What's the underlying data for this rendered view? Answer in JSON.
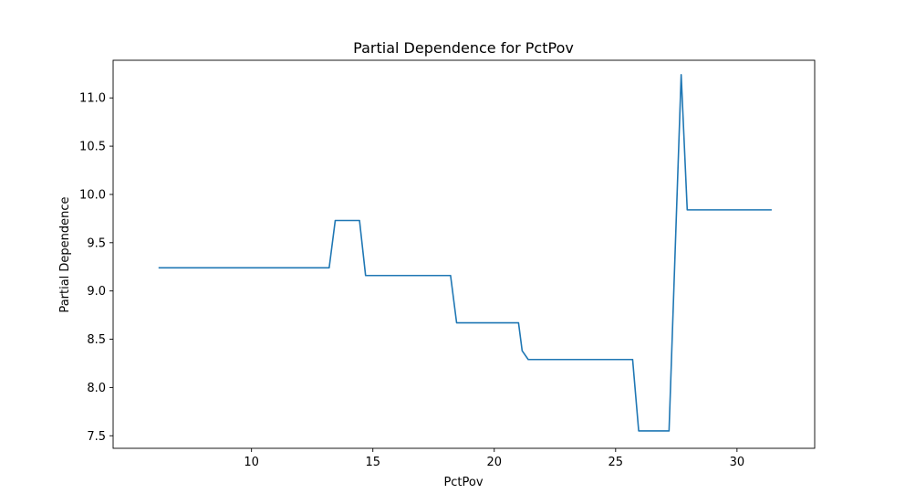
{
  "chart_data": {
    "type": "line",
    "title": "Partial Dependence for PctPov",
    "xlabel": "PctPov",
    "ylabel": "Partial Dependence",
    "xlim": [
      4.3,
      33.2
    ],
    "ylim": [
      7.37,
      11.39
    ],
    "xticks": [
      10,
      15,
      20,
      25,
      30
    ],
    "yticks": [
      7.5,
      8.0,
      8.5,
      9.0,
      9.5,
      10.0,
      10.5,
      11.0
    ],
    "ytick_labels": [
      "7.5",
      "8.0",
      "8.5",
      "9.0",
      "9.5",
      "10.0",
      "10.5",
      "11.0"
    ],
    "grid": false,
    "line_color": "#1f77b4",
    "series": [
      {
        "x": [
          6.2,
          13.2,
          13.45,
          14.45,
          14.7,
          18.2,
          18.45,
          21.0,
          21.15,
          21.4,
          25.7,
          25.95,
          27.2,
          27.7,
          27.95,
          31.4
        ],
        "y": [
          9.24,
          9.24,
          9.73,
          9.73,
          9.16,
          9.16,
          8.67,
          8.67,
          8.38,
          8.29,
          8.29,
          7.55,
          7.55,
          11.24,
          9.84,
          9.84
        ]
      }
    ]
  }
}
